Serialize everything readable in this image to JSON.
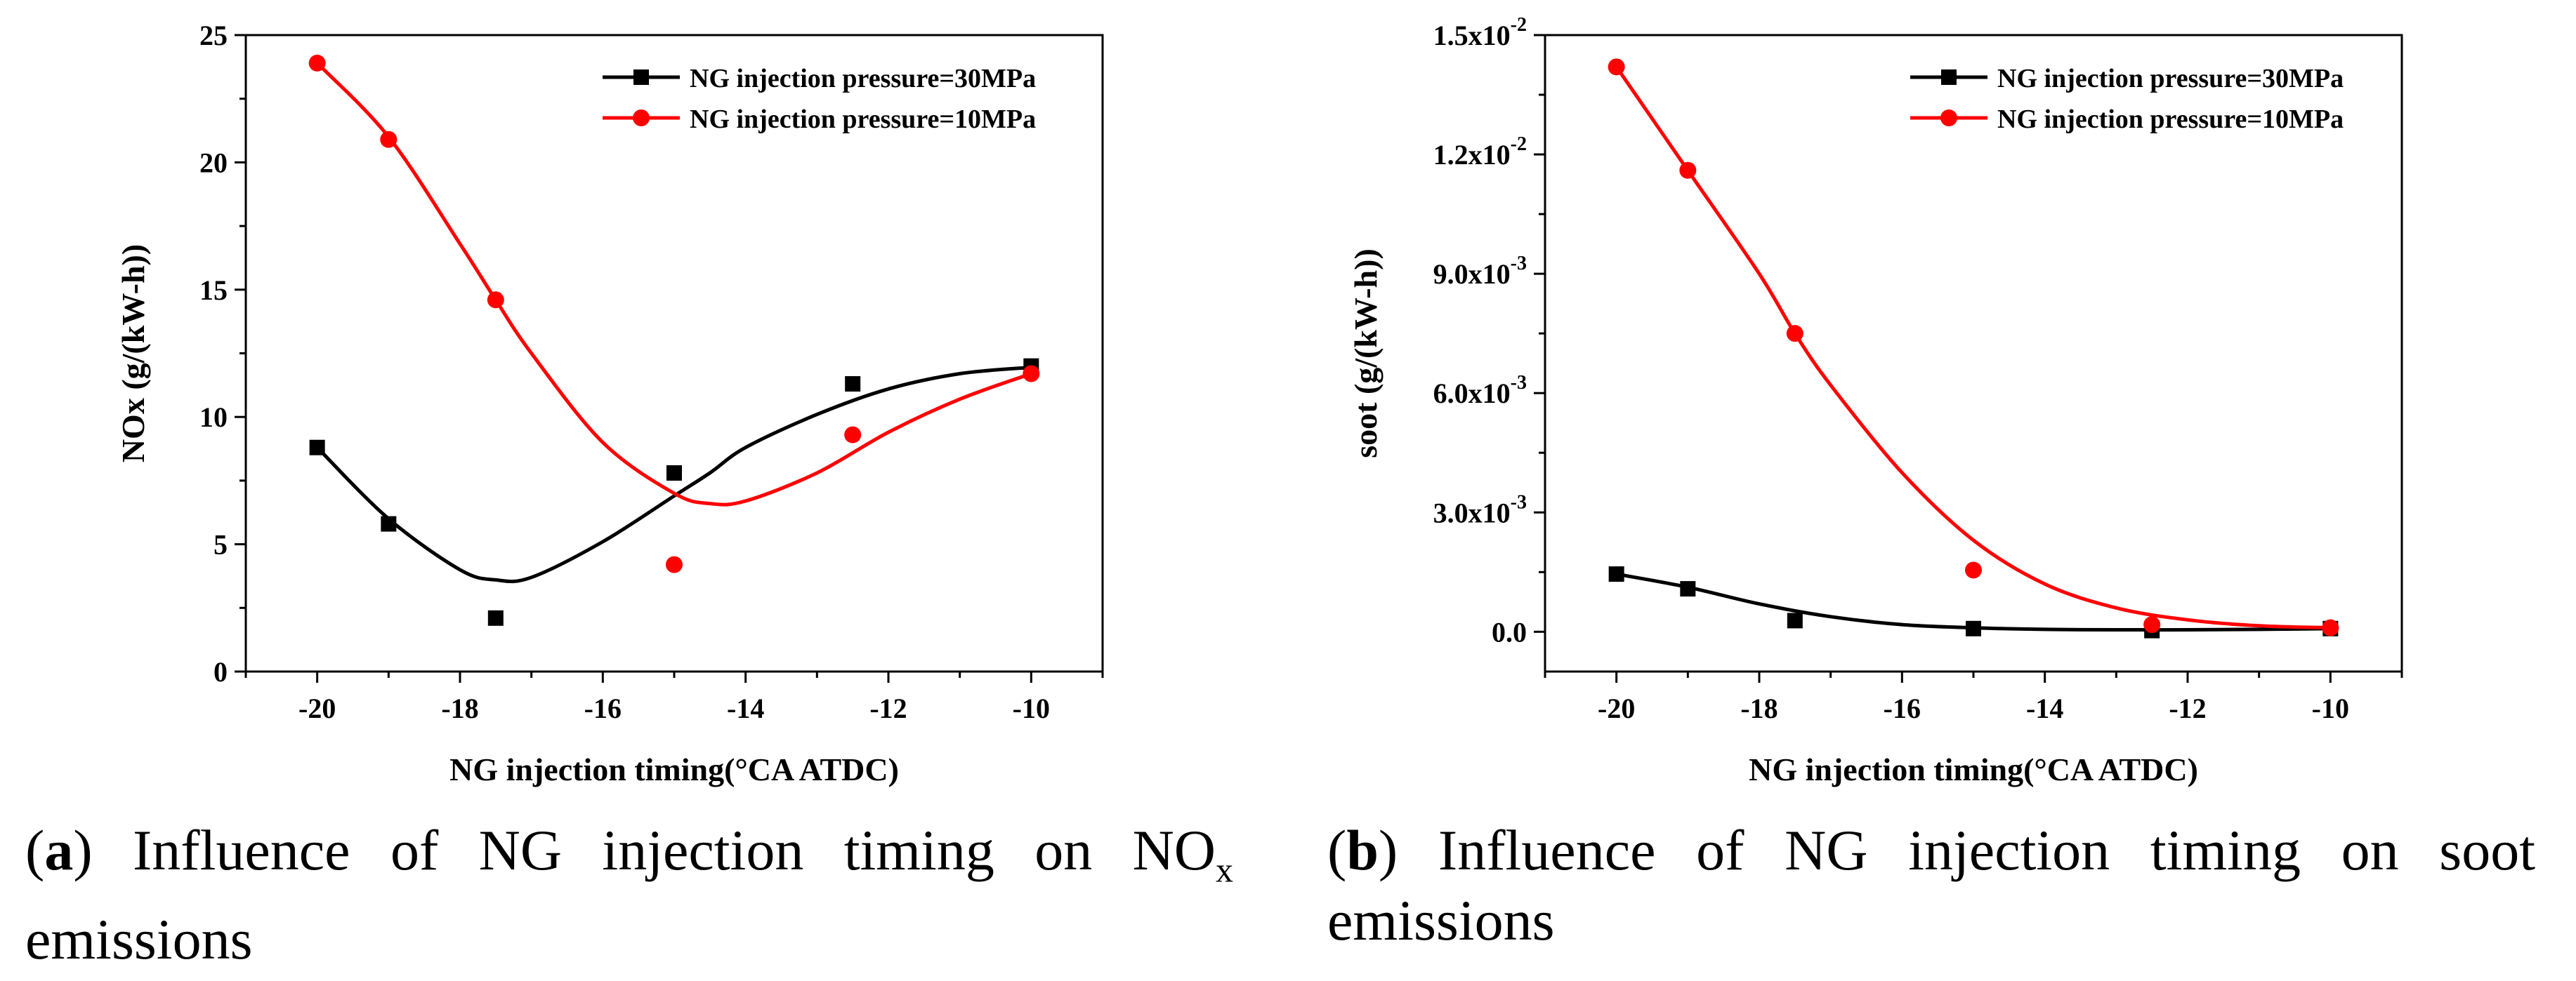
{
  "charts": [
    {
      "id": "a",
      "chart_data": {
        "type": "line",
        "title": "",
        "xlabel": "NG injection timing(°CA  ATDC)",
        "ylabel": "NOx (g/(kW-h))",
        "xlim": [
          -21,
          -9
        ],
        "ylim": [
          0,
          25
        ],
        "xticks": [
          -20,
          -18,
          -16,
          -14,
          -12,
          -10
        ],
        "yticks": [
          0,
          5,
          10,
          15,
          20,
          25
        ],
        "xtick_labels": [
          "-20",
          "-18",
          "-16",
          "-14",
          "-12",
          "-10"
        ],
        "ytick_labels": [
          "0",
          "5",
          "10",
          "15",
          "20",
          "25"
        ],
        "legend_position": "top-right",
        "series": [
          {
            "name": "NG injection pressure=30MPa",
            "color": "#000000",
            "marker": "square",
            "x": [
              -20,
              -19,
              -17.5,
              -15,
              -12.5,
              -10
            ],
            "values": [
              8.8,
              5.8,
              2.1,
              7.8,
              11.3,
              12.0
            ],
            "fit_x": [
              -20,
              -19,
              -18,
              -17.5,
              -17,
              -16,
              -15,
              -14.5,
              -14,
              -13,
              -12,
              -11,
              -10
            ],
            "fit_y": [
              8.8,
              6.0,
              4.0,
              3.6,
              3.7,
              5.1,
              6.9,
              7.8,
              8.8,
              10.1,
              11.1,
              11.7,
              11.95
            ]
          },
          {
            "name": "NG injection pressure=10MPa",
            "color": "#ff0000",
            "marker": "circle",
            "x": [
              -20,
              -19,
              -17.5,
              -15,
              -12.5,
              -10
            ],
            "values": [
              23.9,
              20.9,
              14.6,
              4.2,
              9.3,
              11.7
            ],
            "fit_x": [
              -20,
              -19,
              -18,
              -17.5,
              -17,
              -16,
              -15,
              -14.5,
              -14,
              -13,
              -12,
              -11,
              -10
            ],
            "fit_y": [
              23.9,
              21.0,
              16.8,
              14.6,
              12.5,
              9.0,
              7.0,
              6.6,
              6.7,
              7.8,
              9.4,
              10.7,
              11.7
            ]
          }
        ]
      }
    },
    {
      "id": "b",
      "chart_data": {
        "type": "line",
        "title": "",
        "xlabel": "NG injection timing(°CA  ATDC)",
        "ylabel": "soot (g/(kW-h))",
        "xlim": [
          -21,
          -9
        ],
        "ylim": [
          -0.001,
          0.015
        ],
        "xticks": [
          -20,
          -18,
          -16,
          -14,
          -12,
          -10
        ],
        "yticks": [
          0,
          0.003,
          0.006,
          0.009,
          0.012,
          0.015
        ],
        "xtick_labels": [
          "-20",
          "-18",
          "-16",
          "-14",
          "-12",
          "-10"
        ],
        "ytick_labels": [
          {
            "base": "0.0",
            "exp": ""
          },
          {
            "base": "3.0x10",
            "exp": "-3"
          },
          {
            "base": "6.0x10",
            "exp": "-3"
          },
          {
            "base": "9.0x10",
            "exp": "-3"
          },
          {
            "base": "1.2x10",
            "exp": "-2"
          },
          {
            "base": "1.5x10",
            "exp": "-2"
          }
        ],
        "legend_position": "top-right",
        "series": [
          {
            "name": "NG injection pressure=30MPa",
            "color": "#000000",
            "marker": "square",
            "x": [
              -20,
              -19,
              -17.5,
              -15,
              -12.5,
              -10
            ],
            "values": [
              0.00145,
              0.00108,
              0.00028,
              8e-05,
              3e-05,
              8e-05
            ],
            "fit_x": [
              -20,
              -19,
              -18,
              -17,
              -16,
              -15,
              -14,
              -13,
              -12,
              -11,
              -10
            ],
            "fit_y": [
              0.00145,
              0.00112,
              0.0007,
              0.00038,
              0.00018,
              0.0001,
              6e-05,
              5e-05,
              5e-05,
              6e-05,
              8e-05
            ]
          },
          {
            "name": "NG injection pressure=10MPa",
            "color": "#ff0000",
            "marker": "circle",
            "x": [
              -20,
              -19,
              -17.5,
              -15,
              -12.5,
              -10
            ],
            "values": [
              0.0142,
              0.0116,
              0.0075,
              0.00155,
              0.00018,
              0.0001
            ],
            "fit_x": [
              -20,
              -19,
              -18,
              -17.5,
              -17,
              -16,
              -15,
              -14,
              -13,
              -12,
              -11,
              -10
            ],
            "fit_y": [
              0.0142,
              0.0116,
              0.009,
              0.0075,
              0.0062,
              0.004,
              0.0023,
              0.0012,
              0.0006,
              0.0003,
              0.00015,
              0.0001
            ]
          }
        ]
      }
    }
  ],
  "captions": {
    "a": {
      "label": "a",
      "line1": "Influence of NG injection timing on NO",
      "sub": "x",
      "line2": "emissions"
    },
    "b": {
      "label": "b",
      "line1": "Influence of NG injection timing on soot",
      "line2": "emissions"
    }
  }
}
